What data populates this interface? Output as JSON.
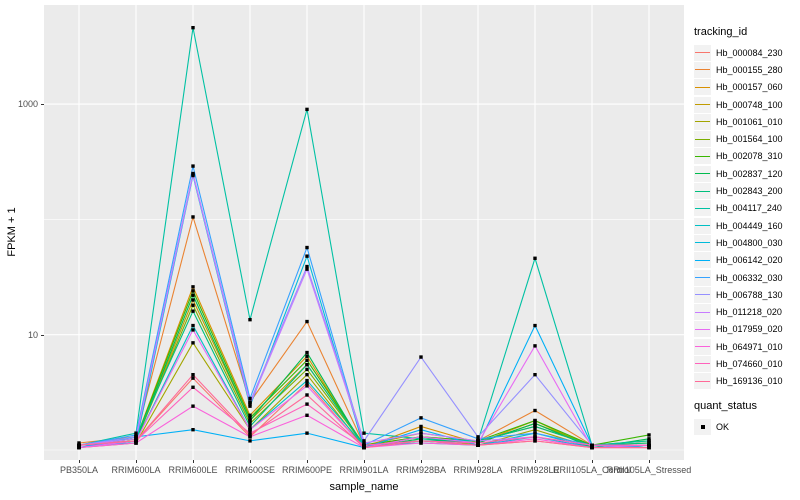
{
  "figure": {
    "background": "#FFFFFF",
    "panel_bg": "#EBEBEB",
    "grid_color": "#FFFFFF",
    "tick_mark_color": "#333333",
    "tick_label_color": "#4D4D4D",
    "point_color": "#000000"
  },
  "axes": {
    "x_title": "sample_name",
    "y_title": "FPKM + 1",
    "y_tick_labels": [
      "10",
      "1000"
    ],
    "y_tick_values": [
      10,
      1000
    ]
  },
  "legend": {
    "tracking_title": "tracking_id",
    "quant_title": "quant_status",
    "quant_items": [
      {
        "label": "OK"
      }
    ]
  },
  "chart_data": {
    "type": "line",
    "x_type": "categorical",
    "log_y": true,
    "title": "",
    "xlabel": "sample_name",
    "ylabel": "FPKM + 1",
    "ylim": [
      0.8,
      7000
    ],
    "grid_y_major": [
      10,
      1000
    ],
    "grid_y_minor": [
      1,
      100
    ],
    "legend_position": "right",
    "categories": [
      "PB350LA",
      "RRIM600LA",
      "RRIM600LE",
      "RRIM600SE",
      "RRIM600PE",
      "RRIM901LA",
      "RRIM928BA",
      "RRIM928LA",
      "RRIM928LE",
      "RRII105LA_Control",
      "RRII105LA_Stressed"
    ],
    "series": [
      {
        "name": "Hb_000084_230",
        "color": "#F8766D",
        "values": [
          1.1,
          1.2,
          4.2,
          1.3,
          3.8,
          1.05,
          1.2,
          1.1,
          1.2,
          1.05,
          1.05
        ]
      },
      {
        "name": "Hb_000155_280",
        "color": "#EA8331",
        "values": [
          1.15,
          1.3,
          105,
          2.6,
          13,
          1.1,
          1.3,
          1.2,
          2.2,
          1.1,
          1.1
        ]
      },
      {
        "name": "Hb_000157_060",
        "color": "#D89000",
        "values": [
          1.1,
          1.25,
          26,
          2.0,
          6.5,
          1.05,
          1.6,
          1.15,
          1.8,
          1.05,
          1.1
        ]
      },
      {
        "name": "Hb_000748_100",
        "color": "#C09B00",
        "values": [
          1.1,
          1.2,
          20,
          1.8,
          5.5,
          1.1,
          1.4,
          1.2,
          1.6,
          1.1,
          1.15
        ]
      },
      {
        "name": "Hb_001061_010",
        "color": "#A3A500",
        "values": [
          1.05,
          1.15,
          8.5,
          1.5,
          4.5,
          1.05,
          1.3,
          1.1,
          1.5,
          1.05,
          1.1
        ]
      },
      {
        "name": "Hb_001564_100",
        "color": "#7CAE00",
        "values": [
          1.1,
          1.2,
          18,
          1.7,
          5.0,
          1.1,
          1.2,
          1.15,
          1.7,
          1.1,
          1.2
        ]
      },
      {
        "name": "Hb_002078_310",
        "color": "#39B600",
        "values": [
          1.1,
          1.25,
          24,
          1.9,
          6.0,
          1.1,
          1.3,
          1.2,
          1.8,
          1.1,
          1.35
        ]
      },
      {
        "name": "Hb_002837_120",
        "color": "#00BB4E",
        "values": [
          1.05,
          1.2,
          22,
          1.8,
          7.0,
          1.05,
          1.25,
          1.15,
          1.7,
          1.05,
          1.25
        ]
      },
      {
        "name": "Hb_002843_200",
        "color": "#00BF7D",
        "values": [
          1.1,
          1.3,
          16,
          1.6,
          5.5,
          1.1,
          1.2,
          1.2,
          1.6,
          1.1,
          1.15
        ]
      },
      {
        "name": "Hb_004117_240",
        "color": "#00C1A3",
        "values": [
          1.1,
          1.4,
          4600,
          13.5,
          900,
          1.4,
          1.25,
          1.2,
          46,
          1.1,
          1.2
        ]
      },
      {
        "name": "Hb_004449_160",
        "color": "#00BFC4",
        "values": [
          1.05,
          1.2,
          12,
          1.5,
          4.0,
          1.1,
          1.15,
          1.1,
          1.4,
          1.05,
          1.1
        ]
      },
      {
        "name": "Hb_004800_030",
        "color": "#00BBDA",
        "values": [
          1.1,
          1.15,
          240,
          2.4,
          48,
          1.05,
          1.2,
          1.1,
          1.3,
          1.05,
          1.1
        ]
      },
      {
        "name": "Hb_006142_020",
        "color": "#00B0F6",
        "values": [
          1.05,
          1.3,
          1.5,
          1.2,
          1.4,
          1.05,
          1.5,
          1.1,
          12,
          1.1,
          1.05
        ]
      },
      {
        "name": "Hb_006332_030",
        "color": "#35A2FF",
        "values": [
          1.1,
          1.35,
          290,
          2.8,
          57,
          1.1,
          1.9,
          1.25,
          1.4,
          1.1,
          1.1
        ]
      },
      {
        "name": "Hb_006788_130",
        "color": "#9590FF",
        "values": [
          1.1,
          1.3,
          250,
          2.6,
          39,
          1.2,
          6.4,
          1.3,
          4.5,
          1.1,
          1.1
        ]
      },
      {
        "name": "Hb_011218_020",
        "color": "#C77CFF",
        "values": [
          1.1,
          1.25,
          245,
          2.5,
          37,
          1.15,
          1.4,
          1.2,
          1.3,
          1.1,
          1.1
        ]
      },
      {
        "name": "Hb_017959_020",
        "color": "#E76BF3",
        "values": [
          1.05,
          1.2,
          11,
          1.5,
          3.6,
          1.05,
          1.3,
          1.15,
          8.0,
          1.05,
          1.1
        ]
      },
      {
        "name": "Hb_064971_010",
        "color": "#FA62DB",
        "values": [
          1.05,
          1.15,
          2.4,
          1.3,
          2.0,
          1.05,
          1.15,
          1.1,
          1.25,
          1.05,
          1.05
        ]
      },
      {
        "name": "Hb_074660_010",
        "color": "#FF62BC",
        "values": [
          1.1,
          1.2,
          3.5,
          1.4,
          2.5,
          1.1,
          1.2,
          1.15,
          1.3,
          1.1,
          1.1
        ]
      },
      {
        "name": "Hb_169136_010",
        "color": "#FF6A98",
        "values": [
          1.1,
          1.2,
          4.5,
          1.35,
          3.0,
          1.05,
          1.2,
          1.1,
          1.2,
          1.05,
          1.05
        ]
      }
    ]
  }
}
